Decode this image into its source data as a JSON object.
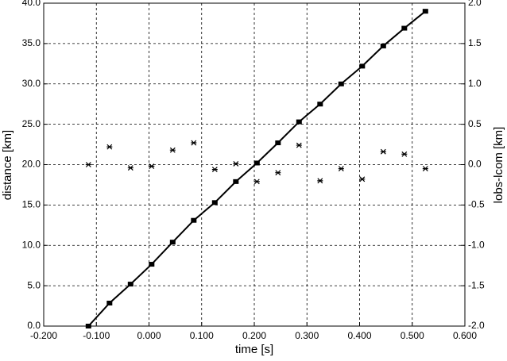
{
  "chart_data": {
    "type": "line",
    "x_label": "time [s]",
    "y_label": "distance [km]",
    "y2_label": "lobs-lcom [km]",
    "x": [
      -0.115,
      -0.075,
      -0.035,
      0.005,
      0.045,
      0.085,
      0.125,
      0.165,
      0.205,
      0.245,
      0.285,
      0.325,
      0.365,
      0.405,
      0.445,
      0.485,
      0.525
    ],
    "series": [
      {
        "color": "#000000",
        "marker": "square",
        "line": true,
        "values": [
          0.0,
          2.85,
          5.2,
          7.66,
          10.4,
          13.1,
          15.3,
          17.9,
          20.2,
          22.7,
          25.3,
          27.5,
          30.0,
          32.2,
          34.7,
          36.9,
          39.0
        ]
      },
      {
        "color": "#000000",
        "marker": "star",
        "line": false,
        "axis": "y2",
        "values": [
          0.0,
          0.22,
          -0.04,
          -0.02,
          0.18,
          0.27,
          -0.06,
          0.01,
          -0.21,
          -0.1,
          0.24,
          -0.2,
          -0.05,
          -0.18,
          0.16,
          0.13,
          -0.05
        ]
      }
    ],
    "xlim": [
      -0.2,
      0.6
    ],
    "xticks": [
      {
        "value": -0.2,
        "label": "-0.200"
      },
      {
        "value": -0.1,
        "label": "-0.100"
      },
      {
        "value": 0,
        "label": "0.000"
      },
      {
        "value": 0.1,
        "label": "0.100"
      },
      {
        "value": 0.2,
        "label": "0.200"
      },
      {
        "value": 0.3,
        "label": "0.300"
      },
      {
        "value": 0.4,
        "label": "0.400"
      },
      {
        "value": 0.5,
        "label": "0.500"
      },
      {
        "value": 0.6,
        "label": "0.600"
      }
    ],
    "ylim": [
      0,
      40
    ],
    "yticks": [
      {
        "value": 0,
        "label": "0.0"
      },
      {
        "value": 5,
        "label": "5.0"
      },
      {
        "value": 10,
        "label": "10.0"
      },
      {
        "value": 15,
        "label": "15.0"
      },
      {
        "value": 20,
        "label": "20.0"
      },
      {
        "value": 25,
        "label": "25.0"
      },
      {
        "value": 30,
        "label": "30.0"
      },
      {
        "value": 35,
        "label": "35.0"
      },
      {
        "value": 40,
        "label": "40.0"
      }
    ],
    "y2lim": [
      -2,
      2
    ],
    "y2ticks": [
      {
        "value": -2,
        "label": "-2.0"
      },
      {
        "value": -1.5,
        "label": "-1.5"
      },
      {
        "value": -1,
        "label": "-1.0"
      },
      {
        "value": -0.5,
        "label": "-0.5"
      },
      {
        "value": 0,
        "label": "0.0"
      },
      {
        "value": 0.5,
        "label": "0.5"
      },
      {
        "value": 1,
        "label": "1.0"
      },
      {
        "value": 1.5,
        "label": "1.5"
      },
      {
        "value": 2,
        "label": "2.0"
      }
    ],
    "grid": true
  }
}
